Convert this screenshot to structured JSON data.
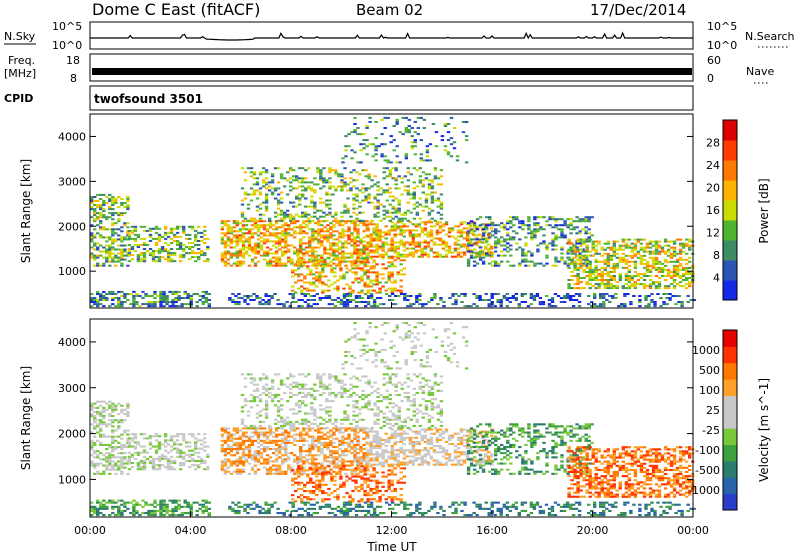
{
  "header": {
    "station": "Dome C East (fitACF)",
    "beam": "Beam 02",
    "date": "17/Dec/2014"
  },
  "top_panels": {
    "nsky_label": "N.Sky",
    "nsky_ticks": [
      "10^5",
      "10^0"
    ],
    "nsearch_label": "N.Search",
    "nsearch_ticks": [
      "10^5",
      "10^0"
    ],
    "freq_label": "Freq.",
    "freq_unit": "[MHz]",
    "freq_ticks": [
      "18",
      "8"
    ],
    "nave_label": "Nave",
    "nave_ticks": [
      "60",
      "0"
    ],
    "cpid_label": "CPID",
    "cpid_value": "twofsound 3501"
  },
  "colors": {
    "power_scale": [
      "#1428e6",
      "#2d55b4",
      "#3c8c64",
      "#50b432",
      "#c8dc00",
      "#ffb400",
      "#ff7800",
      "#ff3c00",
      "#dc0000"
    ],
    "velocity_scale": [
      "#283cc8",
      "#2864aa",
      "#2d7d6e",
      "#3ca03c",
      "#78c83c",
      "#c8c8c8",
      "#c8c8c8",
      "#ffa028",
      "#ff7800",
      "#ff3200",
      "#e60000"
    ]
  },
  "chart_data": [
    {
      "type": "heatmap",
      "name": "power",
      "ylabel": "Slant Range [km]",
      "yticks": [
        "4000",
        "3000",
        "2000",
        "1000"
      ],
      "colorbar_label": "Power [dB]",
      "colorbar_ticks": [
        "28",
        "24",
        "20",
        "16",
        "12",
        "8",
        "4"
      ],
      "ylim": [
        180,
        4500
      ],
      "xlim": [
        0,
        24
      ]
    },
    {
      "type": "heatmap",
      "name": "velocity",
      "ylabel": "Slant Range [km]",
      "yticks": [
        "4000",
        "3000",
        "2000",
        "1000"
      ],
      "colorbar_label": "Velocity [m s^-1]",
      "colorbar_ticks": [
        "1000",
        "500",
        "100",
        "25",
        "-25",
        "-100",
        "-500",
        "-1000"
      ],
      "xlabel": "Time UT",
      "xticks": [
        "00:00",
        "04:00",
        "08:00",
        "12:00",
        "16:00",
        "20:00",
        "00:00"
      ],
      "ylim": [
        180,
        4500
      ],
      "xlim": [
        0,
        24
      ]
    }
  ]
}
